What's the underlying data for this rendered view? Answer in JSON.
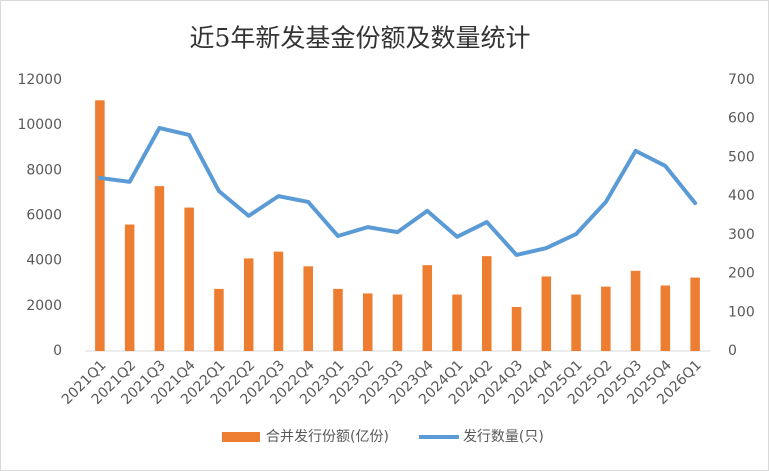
{
  "chart_data": {
    "type": "bar",
    "title": "近5年新发基金份额及数量统计",
    "categories": [
      "2021Q1",
      "2021Q2",
      "2021Q3",
      "2021Q4",
      "2022Q1",
      "2022Q2",
      "2022Q3",
      "2022Q4",
      "2023Q1",
      "2023Q2",
      "2023Q3",
      "2023Q4",
      "2024Q1",
      "2024Q2",
      "2024Q3",
      "2024Q4",
      "2025Q1",
      "2025Q2",
      "2025Q3",
      "2025Q4",
      "2026Q1"
    ],
    "series": [
      {
        "name": "合并发行份额(亿份)",
        "type": "bar",
        "axis": "y",
        "color": "#ed7d31",
        "values": [
          11100,
          5600,
          7300,
          6350,
          2750,
          4100,
          4400,
          3750,
          2750,
          2550,
          2500,
          3800,
          2500,
          4200,
          1950,
          3300,
          2500,
          2850,
          3550,
          2900,
          3250
        ]
      },
      {
        "name": "发行数量(只)",
        "type": "line",
        "axis": "y2",
        "color": "#5b9bd5",
        "values": [
          447,
          437,
          576,
          558,
          413,
          349,
          400,
          385,
          297,
          320,
          307,
          362,
          295,
          333,
          248,
          266,
          302,
          385,
          517,
          478,
          382
        ]
      }
    ],
    "ylim": [
      0,
      12000
    ],
    "yticks": [
      0,
      2000,
      4000,
      6000,
      8000,
      10000,
      12000
    ],
    "y2lim": [
      0,
      700
    ],
    "y2ticks": [
      0,
      100,
      200,
      300,
      400,
      500,
      600,
      700
    ],
    "grid": false,
    "legend": "bottom"
  }
}
